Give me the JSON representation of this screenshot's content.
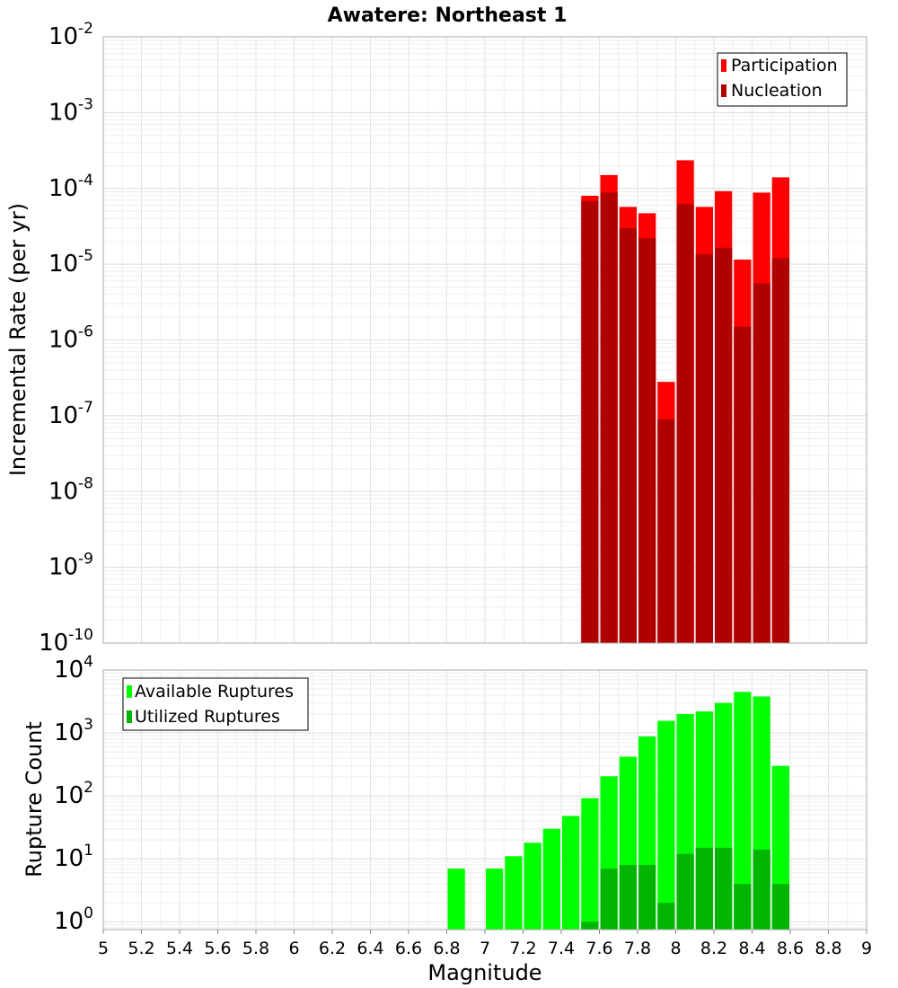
{
  "chart_data": [
    {
      "type": "bar",
      "title": "Awatere: Northeast 1",
      "ylabel": "Incremental Rate (per yr)",
      "xlabel": "",
      "yscale": "log",
      "ylim": [
        1e-10,
        0.01
      ],
      "xlim": [
        5,
        9
      ],
      "bin_width": 0.1,
      "y_tick_exponents": [
        "-2",
        "-3",
        "-4",
        "-5",
        "-6",
        "-7",
        "-8",
        "-9",
        "-10"
      ],
      "legend": {
        "placement": "top-right",
        "entries": [
          "Participation",
          "Nucleation"
        ]
      },
      "grid": true,
      "series": [
        {
          "name": "Participation",
          "color": "#ff0000",
          "x": [
            7.55,
            7.65,
            7.75,
            7.85,
            7.95,
            8.05,
            8.15,
            8.25,
            8.35,
            8.45,
            8.55
          ],
          "values": [
            8e-05,
            0.00015,
            5.7e-05,
            4.7e-05,
            2.8e-07,
            0.000235,
            5.7e-05,
            9.2e-05,
            1.15e-05,
            8.8e-05,
            0.00014
          ]
        },
        {
          "name": "Nucleation",
          "color": "#b10000",
          "x": [
            7.55,
            7.65,
            7.75,
            7.85,
            7.95,
            8.05,
            8.15,
            8.25,
            8.35,
            8.45,
            8.55
          ],
          "values": [
            6.8e-05,
            8.8e-05,
            3e-05,
            2.2e-05,
            9e-08,
            6.2e-05,
            1.35e-05,
            1.65e-05,
            1.5e-06,
            5.6e-06,
            1.2e-05
          ]
        }
      ]
    },
    {
      "type": "bar",
      "title": "",
      "ylabel": "Rupture Count",
      "xlabel": "Magnitude",
      "yscale": "log",
      "ylim": [
        0.75,
        10000
      ],
      "xlim": [
        5,
        9
      ],
      "bin_width": 0.1,
      "y_tick_exponents": [
        "4",
        "3",
        "2",
        "1",
        "0"
      ],
      "x_ticks": [
        "5",
        "5.2",
        "5.4",
        "5.6",
        "5.8",
        "6",
        "6.2",
        "6.4",
        "6.6",
        "6.8",
        "7",
        "7.2",
        "7.4",
        "7.6",
        "7.8",
        "8",
        "8.2",
        "8.4",
        "8.6",
        "8.8",
        "9"
      ],
      "legend": {
        "placement": "top-left",
        "entries": [
          "Available Ruptures",
          "Utilized Ruptures"
        ]
      },
      "grid": true,
      "series": [
        {
          "name": "Available Ruptures",
          "color": "#00ff00",
          "x": [
            6.85,
            7.05,
            7.15,
            7.25,
            7.35,
            7.45,
            7.55,
            7.65,
            7.75,
            7.85,
            7.95,
            8.05,
            8.15,
            8.25,
            8.35,
            8.45,
            8.55
          ],
          "values": [
            7,
            7,
            11,
            18,
            30,
            48,
            92,
            205,
            420,
            880,
            1560,
            2000,
            2200,
            3000,
            4500,
            3800,
            300
          ]
        },
        {
          "name": "Utilized Ruptures",
          "color": "#00b500",
          "x": [
            7.55,
            7.65,
            7.75,
            7.85,
            7.95,
            8.05,
            8.15,
            8.25,
            8.35,
            8.45,
            8.55
          ],
          "values": [
            1,
            7,
            8,
            8,
            2,
            12,
            15,
            15,
            4,
            14,
            4
          ]
        }
      ]
    }
  ]
}
